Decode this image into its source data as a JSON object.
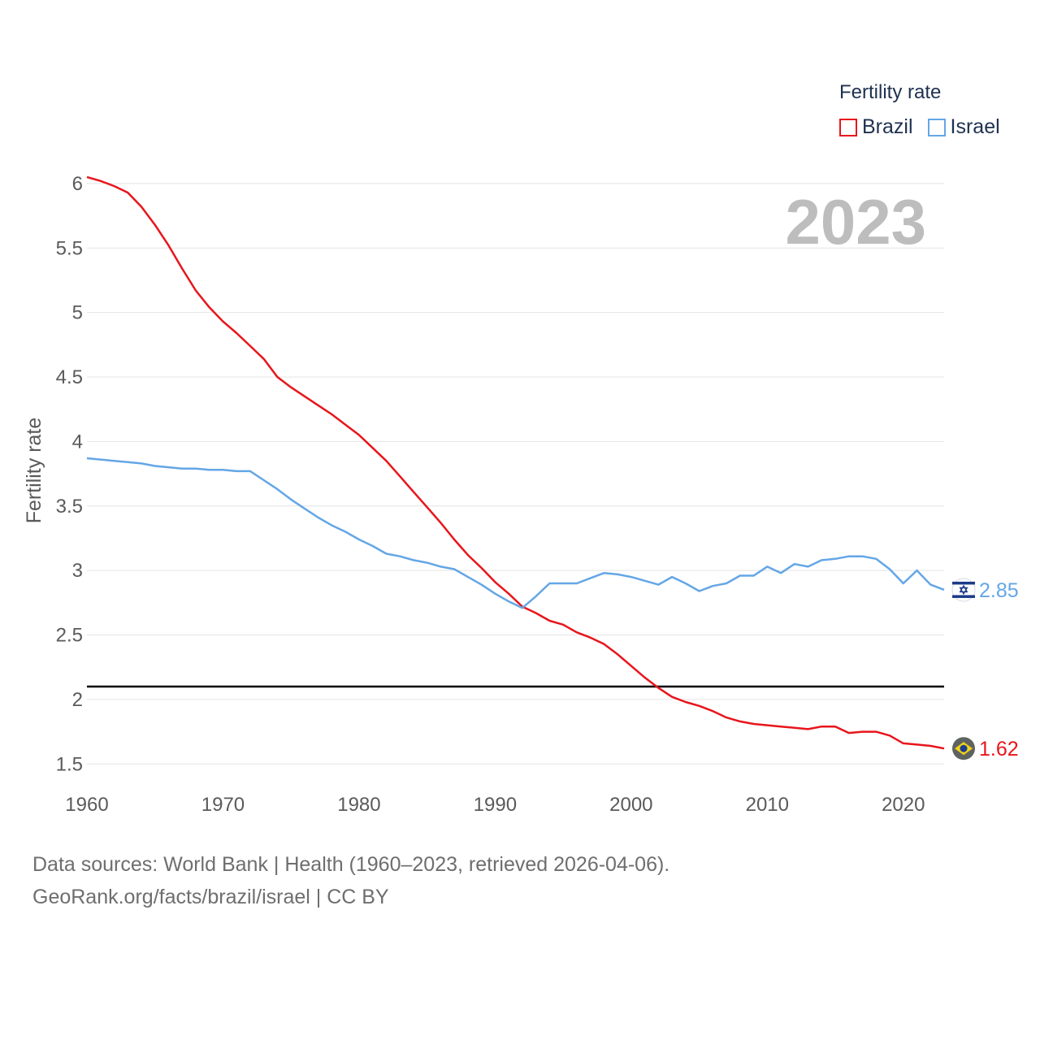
{
  "legend": {
    "title": "Fertility rate",
    "items": [
      {
        "name": "Brazil",
        "color": "#e8151b"
      },
      {
        "name": "Israel",
        "color": "#64a6e6"
      }
    ]
  },
  "year_label": "2023",
  "source": {
    "line1": "Data sources: World Bank | Health (1960–2023, retrieved 2026-04-06).",
    "line2": "GeoRank.org/facts/brazil/israel | CC BY"
  },
  "chart_data": {
    "type": "line",
    "title": "Fertility rate",
    "xlabel": "",
    "ylabel": "Fertility rate",
    "xlim": [
      1960,
      2023
    ],
    "ylim": [
      1.3,
      6.1
    ],
    "x_ticks": [
      1960,
      1970,
      1980,
      1990,
      2000,
      2010,
      2020
    ],
    "y_ticks": [
      1.5,
      2,
      2.5,
      3,
      3.5,
      4,
      4.5,
      5,
      5.5,
      6
    ],
    "y_tick_labels": [
      "1.5",
      "2",
      "2.5",
      "3",
      "3.5",
      "4",
      "4.5",
      "5",
      "5.5",
      "6"
    ],
    "reference_line": 2.1,
    "x": [
      1960,
      1961,
      1962,
      1963,
      1964,
      1965,
      1966,
      1967,
      1968,
      1969,
      1970,
      1971,
      1972,
      1973,
      1974,
      1975,
      1976,
      1977,
      1978,
      1979,
      1980,
      1981,
      1982,
      1983,
      1984,
      1985,
      1986,
      1987,
      1988,
      1989,
      1990,
      1991,
      1992,
      1993,
      1994,
      1995,
      1996,
      1997,
      1998,
      1999,
      2000,
      2001,
      2002,
      2003,
      2004,
      2005,
      2006,
      2007,
      2008,
      2009,
      2010,
      2011,
      2012,
      2013,
      2014,
      2015,
      2016,
      2017,
      2018,
      2019,
      2020,
      2021,
      2022,
      2023
    ],
    "series": [
      {
        "name": "Brazil",
        "color": "#e8151b",
        "end_label": "1.62",
        "values": [
          6.05,
          6.02,
          5.98,
          5.93,
          5.82,
          5.68,
          5.52,
          5.34,
          5.17,
          5.04,
          4.93,
          4.84,
          4.74,
          4.64,
          4.5,
          4.42,
          4.35,
          4.28,
          4.21,
          4.13,
          4.05,
          3.95,
          3.85,
          3.73,
          3.61,
          3.49,
          3.37,
          3.24,
          3.12,
          3.02,
          2.91,
          2.82,
          2.72,
          2.67,
          2.61,
          2.58,
          2.52,
          2.48,
          2.43,
          2.35,
          2.26,
          2.17,
          2.09,
          2.02,
          1.98,
          1.95,
          1.91,
          1.86,
          1.83,
          1.81,
          1.8,
          1.79,
          1.78,
          1.77,
          1.79,
          1.79,
          1.74,
          1.75,
          1.75,
          1.72,
          1.66,
          1.65,
          1.64,
          1.62
        ]
      },
      {
        "name": "Israel",
        "color": "#64a6e6",
        "end_label": "2.85",
        "values": [
          3.87,
          3.86,
          3.85,
          3.84,
          3.83,
          3.81,
          3.8,
          3.79,
          3.79,
          3.78,
          3.78,
          3.77,
          3.77,
          3.7,
          3.63,
          3.55,
          3.48,
          3.41,
          3.35,
          3.3,
          3.24,
          3.19,
          3.13,
          3.11,
          3.08,
          3.06,
          3.03,
          3.01,
          2.95,
          2.89,
          2.82,
          2.76,
          2.71,
          2.8,
          2.9,
          2.9,
          2.9,
          2.94,
          2.98,
          2.97,
          2.95,
          2.92,
          2.89,
          2.95,
          2.9,
          2.84,
          2.88,
          2.9,
          2.96,
          2.96,
          3.03,
          2.98,
          3.05,
          3.03,
          3.08,
          3.09,
          3.11,
          3.11,
          3.09,
          3.01,
          2.9,
          3.0,
          2.89,
          2.85
        ]
      }
    ]
  }
}
